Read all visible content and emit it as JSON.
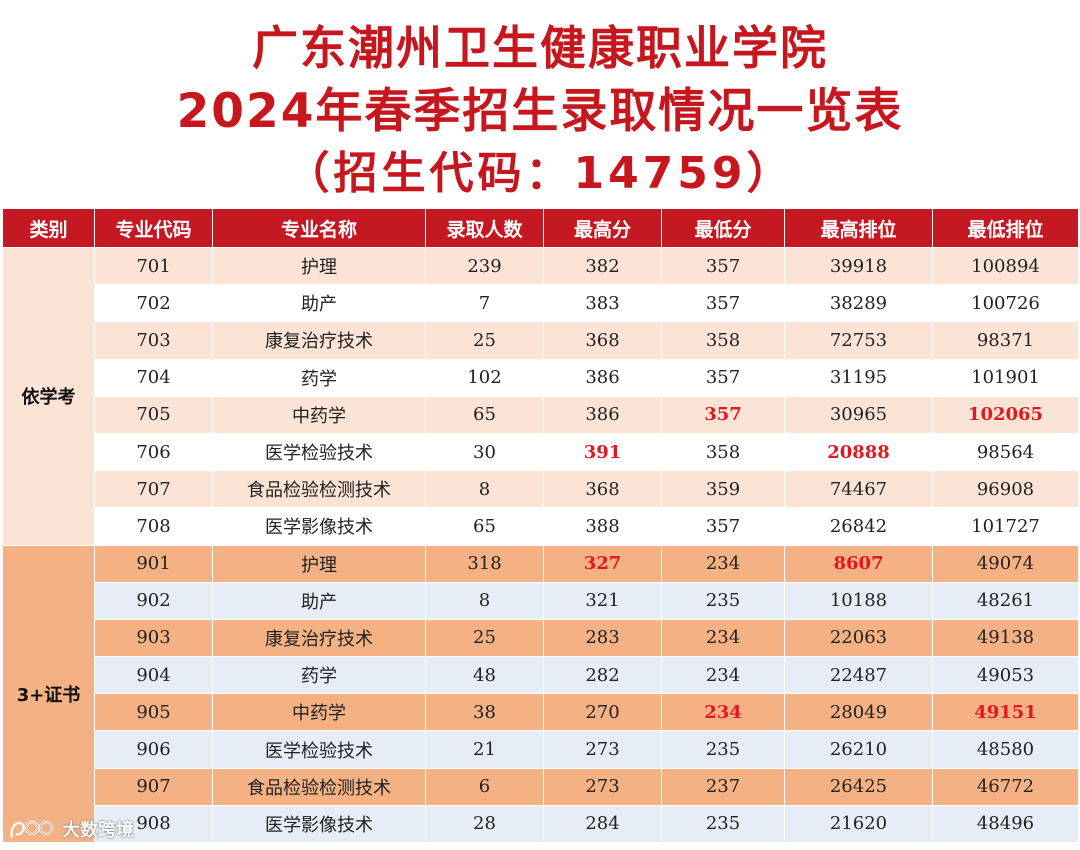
{
  "title": {
    "line1": "广东潮州卫生健康职业学院",
    "line2": "2024年春季招生录取情况一览表",
    "line3": "（招生代码：14759）"
  },
  "table": {
    "headers": [
      "类别",
      "专业代码",
      "专业名称",
      "录取人数",
      "最高分",
      "最低分",
      "最高排位",
      "最低排位"
    ],
    "groups": [
      {
        "category": "依学考",
        "rows": [
          {
            "code": "701",
            "name": "护理",
            "count": "239",
            "max": "382",
            "min": "357",
            "max_rank": "39918",
            "min_rank": "100894"
          },
          {
            "code": "702",
            "name": "助产",
            "count": "7",
            "max": "383",
            "min": "357",
            "max_rank": "38289",
            "min_rank": "100726"
          },
          {
            "code": "703",
            "name": "康复治疗技术",
            "count": "25",
            "max": "368",
            "min": "358",
            "max_rank": "72753",
            "min_rank": "98371"
          },
          {
            "code": "704",
            "name": "药学",
            "count": "102",
            "max": "386",
            "min": "357",
            "max_rank": "31195",
            "min_rank": "101901"
          },
          {
            "code": "705",
            "name": "中药学",
            "count": "65",
            "max": "386",
            "min": "357",
            "max_rank": "30965",
            "min_rank": "102065"
          },
          {
            "code": "706",
            "name": "医学检验技术",
            "count": "30",
            "max": "391",
            "min": "358",
            "max_rank": "20888",
            "min_rank": "98564"
          },
          {
            "code": "707",
            "name": "食品检验检测技术",
            "count": "8",
            "max": "368",
            "min": "359",
            "max_rank": "74467",
            "min_rank": "96908"
          },
          {
            "code": "708",
            "name": "医学影像技术",
            "count": "65",
            "max": "388",
            "min": "357",
            "max_rank": "26842",
            "min_rank": "101727"
          }
        ]
      },
      {
        "category": "3+证书",
        "rows": [
          {
            "code": "901",
            "name": "护理",
            "count": "318",
            "max": "327",
            "min": "234",
            "max_rank": "8607",
            "min_rank": "49074"
          },
          {
            "code": "902",
            "name": "助产",
            "count": "8",
            "max": "321",
            "min": "235",
            "max_rank": "10188",
            "min_rank": "48261"
          },
          {
            "code": "903",
            "name": "康复治疗技术",
            "count": "25",
            "max": "283",
            "min": "234",
            "max_rank": "22063",
            "min_rank": "49138"
          },
          {
            "code": "904",
            "name": "药学",
            "count": "48",
            "max": "282",
            "min": "234",
            "max_rank": "22487",
            "min_rank": "49053"
          },
          {
            "code": "905",
            "name": "中药学",
            "count": "38",
            "max": "270",
            "min": "234",
            "max_rank": "28049",
            "min_rank": "49151"
          },
          {
            "code": "906",
            "name": "医学检验技术",
            "count": "21",
            "max": "273",
            "min": "235",
            "max_rank": "26210",
            "min_rank": "48580"
          },
          {
            "code": "907",
            "name": "食品检验检测技术",
            "count": "6",
            "max": "273",
            "min": "237",
            "max_rank": "26425",
            "min_rank": "46772"
          },
          {
            "code": "908",
            "name": "医学影像技术",
            "count": "28",
            "max": "284",
            "min": "235",
            "max_rank": "21620",
            "min_rank": "48496"
          }
        ]
      }
    ]
  },
  "highlight_color": "#e3181f",
  "header_color": "#c41922",
  "watermark": {
    "icon": "logo-icon",
    "text": "大数跨境"
  }
}
